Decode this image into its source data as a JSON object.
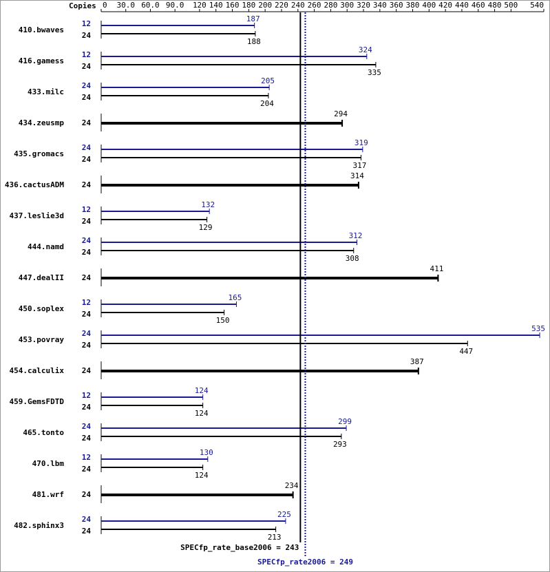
{
  "chart_data": {
    "type": "bar",
    "axis_label": "Copies",
    "xlim": [
      0,
      540
    ],
    "xticks": [
      0,
      {
        "value": 30,
        "label": "30.0"
      },
      {
        "value": 60,
        "label": "60.0"
      },
      {
        "value": 90,
        "label": "90.0"
      },
      120,
      140,
      160,
      180,
      200,
      220,
      240,
      260,
      280,
      300,
      320,
      340,
      360,
      380,
      400,
      420,
      440,
      460,
      480,
      500,
      540
    ],
    "categories": [
      "410.bwaves",
      "416.gamess",
      "433.milc",
      "434.zeusmp",
      "435.gromacs",
      "436.cactusADM",
      "437.leslie3d",
      "444.namd",
      "447.dealII",
      "450.soplex",
      "453.povray",
      "454.calculix",
      "459.GemsFDTD",
      "465.tonto",
      "470.lbm",
      "481.wrf",
      "482.sphinx3"
    ],
    "series": [
      {
        "color": "#000000",
        "copies": [
          24,
          24,
          24,
          24,
          24,
          24,
          24,
          24,
          24,
          24,
          24,
          24,
          24,
          24,
          24,
          24,
          24
        ],
        "values": [
          188,
          335,
          204,
          294,
          317,
          314,
          129,
          308,
          411,
          150,
          447,
          387,
          124,
          293,
          124,
          234,
          213
        ]
      },
      {
        "color": "#191996",
        "copies": [
          12,
          12,
          24,
          null,
          24,
          null,
          12,
          24,
          null,
          12,
          24,
          null,
          12,
          24,
          12,
          null,
          24
        ],
        "values": [
          187,
          324,
          205,
          null,
          319,
          null,
          132,
          312,
          null,
          165,
          535,
          null,
          124,
          299,
          130,
          null,
          225
        ]
      }
    ],
    "reference_lines": [
      {
        "label": "SPECfp_rate_base2006 = 243",
        "value": 243,
        "color": "#000000",
        "style": "solid"
      },
      {
        "label": "SPECfp_rate2006 = 249",
        "value": 249,
        "color": "#191996",
        "style": "dotted"
      }
    ]
  }
}
